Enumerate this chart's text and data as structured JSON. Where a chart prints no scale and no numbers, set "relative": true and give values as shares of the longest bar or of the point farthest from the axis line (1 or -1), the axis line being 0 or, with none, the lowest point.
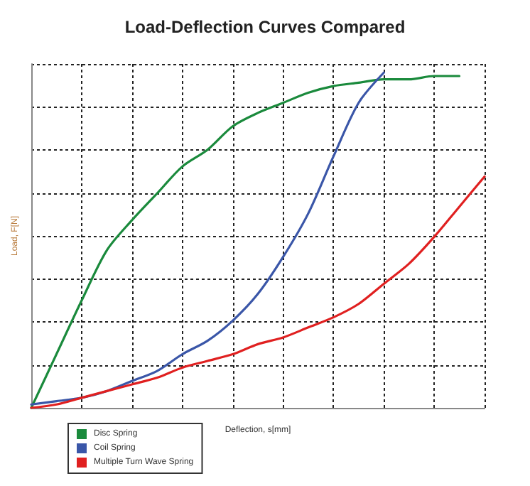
{
  "chart_data": {
    "type": "line",
    "title": "Load-Deflection Curves Compared",
    "xlabel": "Deflection, s[mm]",
    "ylabel": "Load, F[N]",
    "relative": true,
    "grid": true,
    "legend": "bottom left",
    "marker": "none",
    "line_style": "solid",
    "categories": [
      null,
      null,
      null,
      null,
      null,
      null,
      null,
      null,
      null,
      null,
      null,
      null,
      null,
      null,
      null,
      null,
      null,
      null,
      null
    ],
    "series": [
      {
        "name": "Disc Spring",
        "color": "#1a8a3c",
        "values": [
          0,
          0.16,
          0.32,
          0.47,
          0.56,
          0.64,
          0.72,
          0.77,
          0.84,
          0.88,
          0.91,
          0.94,
          0.96,
          0.97,
          0.98,
          0.98,
          0.99,
          0.99,
          null
        ]
      },
      {
        "name": "Coil Spring",
        "color": "#3a56a8",
        "values": [
          0.01,
          0.02,
          0.03,
          0.05,
          0.08,
          0.11,
          0.16,
          0.2,
          0.26,
          0.34,
          0.45,
          0.58,
          0.75,
          0.91,
          1,
          null,
          null,
          null,
          null
        ]
      },
      {
        "name": "Multiple Turn Wave Spring",
        "color": "#e02020",
        "values": [
          0,
          0.01,
          0.03,
          0.05,
          0.07,
          0.09,
          0.12,
          0.14,
          0.16,
          0.19,
          0.21,
          0.24,
          0.27,
          0.31,
          0.37,
          0.43,
          0.51,
          0.6,
          0.69
        ]
      }
    ]
  }
}
